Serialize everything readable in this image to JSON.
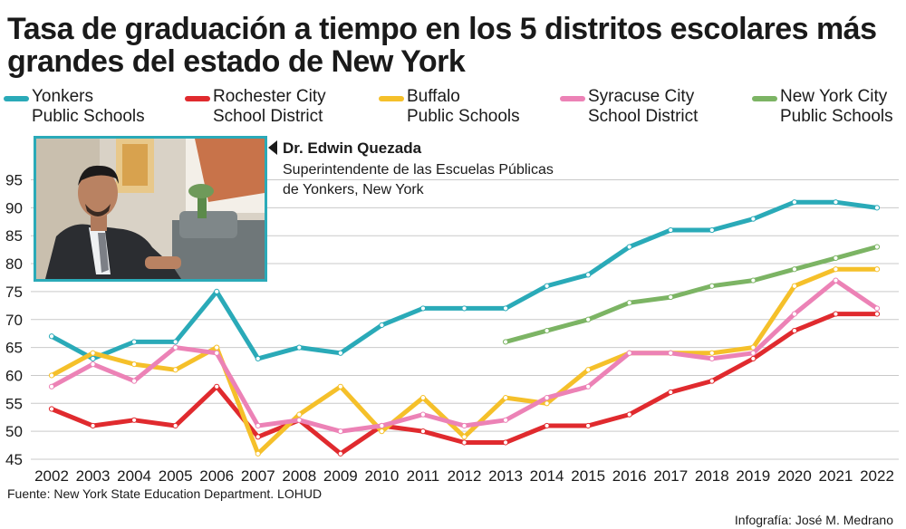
{
  "title": "Tasa de graduación a tiempo en los 5 distritos escolares más grandes del estado de New York",
  "caption": {
    "name": "Dr. Edwin Quezada",
    "role": "Superintendente de las Escuelas Públicas de Yonkers, New York"
  },
  "photo": {
    "icon": "portrait-photo"
  },
  "source": "Fuente: New York State Education Department. LOHUD",
  "credit": "Infografía: José M. Medrano",
  "chart_data": {
    "type": "line",
    "title": "Tasa de graduación a tiempo en los 5 distritos escolares más grandes del estado de New York",
    "xlabel": "",
    "ylabel": "",
    "x": [
      "2002",
      "2003",
      "2004",
      "2005",
      "2006",
      "2007",
      "2008",
      "2009",
      "2010",
      "2011",
      "2012",
      "2013",
      "2014",
      "2015",
      "2016",
      "2017",
      "2018",
      "2019",
      "2020",
      "2021",
      "2022"
    ],
    "yticks": [
      45,
      50,
      55,
      60,
      65,
      70,
      75,
      80,
      85,
      90,
      95
    ],
    "ylim": [
      45,
      98
    ],
    "grid": true,
    "legend_placement": "top",
    "series": [
      {
        "name_line1": "Yonkers",
        "name_line2": "Public Schools",
        "name": "Yonkers Public Schools",
        "color": "#2aaab8",
        "values": [
          67,
          63,
          66,
          66,
          75,
          63,
          65,
          64,
          69,
          72,
          72,
          72,
          76,
          78,
          83,
          86,
          86,
          88,
          91,
          91,
          90
        ]
      },
      {
        "name_line1": "Rochester City",
        "name_line2": "School District",
        "name": "Rochester City School District",
        "color": "#e02a2e",
        "values": [
          54,
          51,
          52,
          51,
          58,
          49,
          52,
          46,
          51,
          50,
          48,
          48,
          51,
          51,
          53,
          57,
          59,
          63,
          68,
          71,
          71
        ]
      },
      {
        "name_line1": "Buffalo",
        "name_line2": "Public Schools",
        "name": "Buffalo Public Schools",
        "color": "#f5c02a",
        "values": [
          60,
          64,
          62,
          61,
          65,
          46,
          53,
          58,
          50,
          56,
          49,
          56,
          55,
          61,
          64,
          64,
          64,
          65,
          76,
          79,
          79
        ]
      },
      {
        "name_line1": "Syracuse City",
        "name_line2": "School District",
        "name": "Syracuse City School District",
        "color": "#ec82b6",
        "values": [
          58,
          62,
          59,
          65,
          64,
          51,
          52,
          50,
          51,
          53,
          51,
          52,
          56,
          58,
          64,
          64,
          63,
          64,
          71,
          77,
          72
        ]
      },
      {
        "name_line1": "New York City",
        "name_line2": "Public Schools",
        "name": "New York City Public Schools",
        "color": "#7cb464",
        "values": [
          null,
          null,
          null,
          null,
          null,
          null,
          null,
          null,
          null,
          null,
          null,
          66,
          68,
          70,
          73,
          74,
          76,
          77,
          79,
          81,
          83
        ]
      }
    ]
  }
}
